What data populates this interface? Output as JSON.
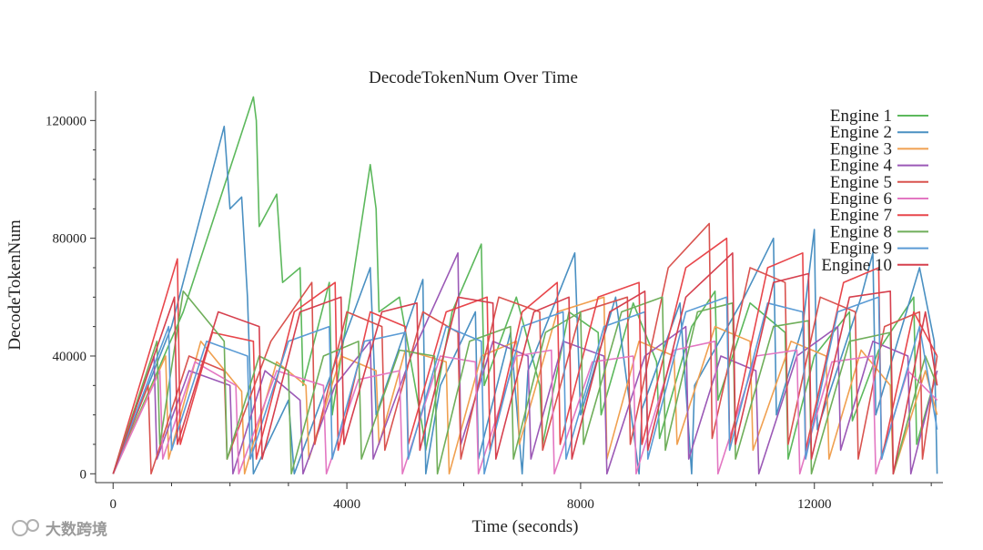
{
  "chart_data": {
    "type": "line",
    "title": "DecodeTokenNum Over Time",
    "xlabel": "Time (seconds)",
    "ylabel": "DecodeTokenNum",
    "xlim": [
      -300,
      14200
    ],
    "ylim": [
      -3000,
      130000
    ],
    "xticks": [
      0,
      4000,
      8000,
      12000
    ],
    "xtick_labels": [
      "0",
      "4000",
      "8000",
      "12000"
    ],
    "yticks": [
      0,
      40000,
      80000,
      120000
    ],
    "ytick_labels": [
      "0",
      "40000",
      "80000",
      "120000"
    ],
    "legend_position": "top-right",
    "series": [
      {
        "name": "Engine 1",
        "color": "#5cb85c",
        "x": [
          0,
          1200,
          2400,
          2450,
          2500,
          2800,
          2900,
          3200,
          3250,
          3700,
          3750,
          4400,
          4500,
          4550,
          4900,
          5300,
          5350,
          5800,
          6300,
          6350,
          6900,
          7300,
          7350,
          7800,
          8300,
          8350,
          8900,
          9300,
          9350,
          9900,
          10300,
          10350,
          10900,
          11500,
          11550,
          12000,
          12600,
          12650,
          13100,
          13700,
          13750,
          14100
        ],
        "y": [
          0,
          55000,
          128000,
          120000,
          84000,
          95000,
          65000,
          70000,
          30000,
          65000,
          20000,
          105000,
          90000,
          55000,
          60000,
          15000,
          8000,
          55000,
          78000,
          30000,
          60000,
          30000,
          10000,
          55000,
          48000,
          20000,
          58000,
          38000,
          12000,
          50000,
          62000,
          25000,
          58000,
          48000,
          5000,
          40000,
          55000,
          18000,
          42000,
          60000,
          10000,
          35000
        ]
      },
      {
        "name": "Engine 2",
        "color": "#4a90c2",
        "x": [
          0,
          1000,
          1900,
          2000,
          2200,
          2300,
          2400,
          3000,
          3100,
          4400,
          4500,
          5300,
          5350,
          5600,
          6200,
          6250,
          6800,
          7000,
          7100,
          7900,
          8000,
          8600,
          9000,
          9050,
          9700,
          9900,
          9950,
          10800,
          11300,
          11350,
          11800,
          12000,
          12050,
          12800,
          13000,
          13050,
          13800,
          14050,
          14100
        ],
        "y": [
          0,
          50000,
          118000,
          90000,
          94000,
          60000,
          0,
          25000,
          0,
          70000,
          20000,
          66000,
          0,
          30000,
          55000,
          5000,
          48000,
          0,
          35000,
          75000,
          20000,
          60000,
          0,
          22000,
          58000,
          0,
          30000,
          60000,
          80000,
          20000,
          50000,
          83000,
          15000,
          60000,
          75000,
          20000,
          70000,
          45000,
          0
        ]
      },
      {
        "name": "Engine 3",
        "color": "#f0a050",
        "x": [
          0,
          900,
          950,
          1500,
          2200,
          2250,
          2800,
          3300,
          3350,
          3900,
          4500,
          4550,
          5000,
          5700,
          5750,
          6300,
          6900,
          6950,
          7600,
          8400,
          8450,
          9000,
          9600,
          9650,
          10300,
          10900,
          10950,
          11600,
          12200,
          12250,
          12800,
          13300,
          13350,
          13900,
          14100
        ],
        "y": [
          0,
          40000,
          5000,
          45000,
          28000,
          0,
          38000,
          30000,
          5000,
          40000,
          35000,
          10000,
          42000,
          38000,
          0,
          40000,
          45000,
          10000,
          55000,
          60000,
          5000,
          45000,
          40000,
          10000,
          50000,
          45000,
          8000,
          45000,
          40000,
          5000,
          42000,
          30000,
          0,
          35000,
          20000
        ]
      },
      {
        "name": "Engine 4",
        "color": "#9b59b6",
        "x": [
          0,
          700,
          750,
          1300,
          2000,
          2050,
          2600,
          3200,
          3250,
          3800,
          4400,
          4450,
          5100,
          5900,
          5950,
          6500,
          7100,
          7150,
          7700,
          8400,
          8450,
          9100,
          9800,
          9850,
          10400,
          11000,
          11050,
          11700,
          12400,
          12450,
          13000,
          13600,
          13650,
          14100
        ],
        "y": [
          0,
          40000,
          5000,
          35000,
          30000,
          0,
          35000,
          25000,
          0,
          30000,
          45000,
          5000,
          40000,
          75000,
          10000,
          45000,
          40000,
          5000,
          45000,
          40000,
          0,
          40000,
          50000,
          5000,
          40000,
          35000,
          0,
          40000,
          50000,
          8000,
          45000,
          40000,
          0,
          35000
        ]
      },
      {
        "name": "Engine 5",
        "color": "#d9534f",
        "x": [
          0,
          600,
          650,
          1300,
          1900,
          1950,
          2700,
          3400,
          3450,
          4000,
          4600,
          4650,
          5300,
          5900,
          5950,
          6600,
          7300,
          7350,
          8000,
          8800,
          8850,
          9500,
          10200,
          10250,
          10900,
          11500,
          11550,
          12100,
          12700,
          12750,
          13200,
          13800,
          13850,
          14100
        ],
        "y": [
          0,
          30000,
          0,
          40000,
          35000,
          5000,
          45000,
          65000,
          10000,
          55000,
          50000,
          8000,
          55000,
          48000,
          5000,
          60000,
          55000,
          8000,
          55000,
          60000,
          10000,
          70000,
          85000,
          12000,
          70000,
          65000,
          10000,
          60000,
          55000,
          5000,
          50000,
          55000,
          5000,
          40000
        ]
      },
      {
        "name": "Engine 6",
        "color": "#e377c2",
        "x": [
          0,
          800,
          850,
          1400,
          2100,
          2150,
          2800,
          3600,
          3650,
          4200,
          4900,
          4950,
          5600,
          6200,
          6250,
          6900,
          7500,
          7550,
          8200,
          8900,
          8950,
          9600,
          10300,
          10350,
          11000,
          11700,
          11750,
          12300,
          13000,
          13050,
          13600,
          14100
        ],
        "y": [
          0,
          35000,
          5000,
          38000,
          30000,
          0,
          35000,
          30000,
          0,
          32000,
          35000,
          0,
          40000,
          38000,
          0,
          40000,
          42000,
          0,
          38000,
          40000,
          0,
          42000,
          45000,
          0,
          40000,
          42000,
          0,
          38000,
          40000,
          0,
          35000,
          25000
        ]
      },
      {
        "name": "Engine 7",
        "color": "#e8464b",
        "x": [
          0,
          1100,
          1150,
          1700,
          2400,
          2450,
          3100,
          3800,
          3850,
          4400,
          5000,
          5050,
          5700,
          6400,
          6450,
          7000,
          7600,
          7650,
          8300,
          9000,
          9050,
          9800,
          10500,
          10550,
          11200,
          11800,
          11850,
          12500,
          13100,
          13150,
          13700,
          14100
        ],
        "y": [
          0,
          73000,
          10000,
          48000,
          45000,
          5000,
          55000,
          65000,
          8000,
          55000,
          50000,
          10000,
          55000,
          60000,
          8000,
          55000,
          65000,
          10000,
          60000,
          65000,
          10000,
          70000,
          80000,
          10000,
          70000,
          75000,
          8000,
          65000,
          70000,
          5000,
          55000,
          40000
        ]
      },
      {
        "name": "Engine 8",
        "color": "#6fae5a",
        "x": [
          0,
          750,
          800,
          1200,
          1900,
          1950,
          2500,
          3000,
          3050,
          3600,
          4200,
          4250,
          4900,
          5500,
          5550,
          6100,
          6800,
          6850,
          7400,
          8000,
          8050,
          8700,
          9400,
          9450,
          10000,
          10600,
          10650,
          11300,
          11900,
          11950,
          12600,
          13300,
          13350,
          13900,
          14100
        ],
        "y": [
          0,
          45000,
          10000,
          62000,
          45000,
          5000,
          40000,
          35000,
          0,
          40000,
          45000,
          5000,
          42000,
          40000,
          0,
          45000,
          50000,
          5000,
          48000,
          55000,
          10000,
          55000,
          60000,
          8000,
          55000,
          58000,
          5000,
          50000,
          52000,
          0,
          45000,
          48000,
          0,
          40000,
          30000
        ]
      },
      {
        "name": "Engine 9",
        "color": "#5a9bd5",
        "x": [
          0,
          950,
          1000,
          1600,
          2300,
          2350,
          3000,
          3700,
          3750,
          4300,
          5000,
          5050,
          5700,
          6300,
          6350,
          7000,
          7700,
          7750,
          8400,
          9100,
          9150,
          9800,
          10500,
          10550,
          11200,
          11800,
          11850,
          12400,
          13100,
          13150,
          13800,
          14100
        ],
        "y": [
          0,
          50000,
          8000,
          45000,
          40000,
          5000,
          45000,
          50000,
          5000,
          45000,
          48000,
          5000,
          50000,
          45000,
          0,
          50000,
          55000,
          5000,
          50000,
          55000,
          5000,
          55000,
          60000,
          8000,
          58000,
          55000,
          5000,
          55000,
          60000,
          5000,
          50000,
          15000
        ]
      },
      {
        "name": "Engine 10",
        "color": "#d6404e",
        "x": [
          0,
          1050,
          1100,
          1800,
          2500,
          2550,
          3200,
          3900,
          3950,
          4600,
          5200,
          5250,
          5900,
          6500,
          6550,
          7200,
          7800,
          7850,
          8500,
          9100,
          9150,
          9800,
          10600,
          10650,
          11300,
          11900,
          11950,
          12600,
          13300,
          13350,
          13900,
          14100
        ],
        "y": [
          0,
          60000,
          10000,
          55000,
          50000,
          5000,
          55000,
          60000,
          10000,
          55000,
          58000,
          8000,
          60000,
          58000,
          5000,
          55000,
          60000,
          5000,
          55000,
          62000,
          8000,
          60000,
          75000,
          10000,
          65000,
          68000,
          5000,
          60000,
          62000,
          0,
          55000,
          30000
        ]
      }
    ]
  },
  "watermark": {
    "text": "大数跨境"
  }
}
